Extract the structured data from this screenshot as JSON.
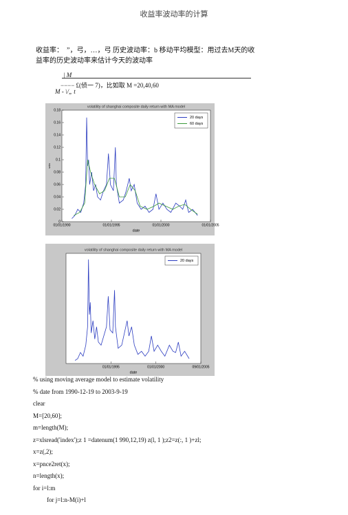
{
  "header": {
    "title": "收益率波动率的计算"
  },
  "paragraph": "收益率：　”，弓，…，弓  历史波动率：b  移动平均模型：用过去M天的收益率的历史波动率来估计今天的波动率",
  "formula": [
    "| M",
    "−−−− £(侦一 7)，比如取 M =20,40,60",
    "M - \\/„ t"
  ],
  "chart_data": [
    {
      "type": "line",
      "title": "volatility of shanghai composite daily return with MA model",
      "xlabel": "date",
      "ylabel": "vola",
      "legend": "upper right",
      "xlim": [
        1990,
        2005
      ],
      "xticks": [
        {
          "value": 1990,
          "label": "01/01/1990"
        },
        {
          "value": 1995,
          "label": "01/01/1995"
        },
        {
          "value": 2000,
          "label": "01/01/2000"
        },
        {
          "value": 2005,
          "label": "01/01/2005"
        }
      ],
      "ylim": [
        0,
        0.18
      ],
      "yticks": [
        0,
        0.02,
        0.04,
        0.06,
        0.08,
        0.1,
        0.12,
        0.14,
        0.16,
        0.18
      ],
      "series": [
        {
          "name": "20 days",
          "color": "#2b3cc0",
          "x": [
            1991.0,
            1991.3,
            1991.6,
            1991.9,
            1992.2,
            1992.4,
            1992.5,
            1992.6,
            1992.7,
            1992.8,
            1993.0,
            1993.2,
            1993.4,
            1993.6,
            1993.9,
            1994.2,
            1994.5,
            1994.7,
            1994.9,
            1995.2,
            1995.4,
            1995.5,
            1995.8,
            1996.2,
            1996.5,
            1996.8,
            1997.0,
            1997.3,
            1997.6,
            1998.0,
            1998.4,
            1998.8,
            1999.2,
            1999.5,
            1999.8,
            2000.2,
            2000.6,
            2001.0,
            2001.5,
            2001.9,
            2002.2,
            2002.5,
            2002.8,
            2003.2,
            2003.7
          ],
          "values": [
            0.005,
            0.01,
            0.02,
            0.015,
            0.03,
            0.06,
            0.168,
            0.09,
            0.1,
            0.06,
            0.08,
            0.05,
            0.06,
            0.04,
            0.035,
            0.05,
            0.06,
            0.11,
            0.06,
            0.05,
            0.12,
            0.06,
            0.03,
            0.035,
            0.05,
            0.07,
            0.05,
            0.06,
            0.03,
            0.02,
            0.025,
            0.015,
            0.02,
            0.045,
            0.02,
            0.03,
            0.02,
            0.015,
            0.03,
            0.025,
            0.02,
            0.035,
            0.015,
            0.02,
            0.01
          ]
        },
        {
          "name": "60 days",
          "color": "#3a9a3a",
          "x": [
            1991.2,
            1991.8,
            1992.3,
            1992.6,
            1992.9,
            1993.3,
            1993.8,
            1994.3,
            1994.8,
            1995.3,
            1995.8,
            1996.4,
            1996.9,
            1997.4,
            1997.9,
            1998.6,
            1999.3,
            1999.8,
            2000.5,
            2001.2,
            2001.8,
            2002.4,
            2003.0,
            2003.7
          ],
          "values": [
            0.01,
            0.015,
            0.03,
            0.1,
            0.08,
            0.06,
            0.045,
            0.05,
            0.07,
            0.07,
            0.04,
            0.04,
            0.06,
            0.05,
            0.025,
            0.02,
            0.025,
            0.03,
            0.025,
            0.02,
            0.025,
            0.028,
            0.02,
            0.012
          ]
        }
      ]
    },
    {
      "type": "line",
      "title": "volatility of shanghai composite daily return with MA model",
      "xlabel": "date",
      "legend": "upper right",
      "xlim": [
        1990,
        2005
      ],
      "xticks": [
        {
          "value": 1995,
          "label": "01/01/1995"
        },
        {
          "value": 2000,
          "label": "01/01/2000"
        },
        {
          "value": 2005,
          "label": "09/01/2005"
        }
      ],
      "ylim": [
        0,
        0.18
      ],
      "series": [
        {
          "name": "20 days",
          "color": "#2b3cc0",
          "x": [
            1991.0,
            1991.3,
            1991.6,
            1991.9,
            1992.2,
            1992.4,
            1992.5,
            1992.6,
            1992.7,
            1992.8,
            1993.0,
            1993.2,
            1993.4,
            1993.6,
            1993.9,
            1994.2,
            1994.5,
            1994.7,
            1994.9,
            1995.2,
            1995.4,
            1995.5,
            1995.8,
            1996.2,
            1996.5,
            1996.8,
            1997.0,
            1997.3,
            1997.6,
            1998.0,
            1998.4,
            1998.8,
            1999.2,
            1999.5,
            1999.8,
            2000.2,
            2000.6,
            2001.0,
            2001.5,
            2001.9,
            2002.2,
            2002.5,
            2002.8,
            2003.2,
            2003.7
          ],
          "values": [
            0.005,
            0.008,
            0.018,
            0.012,
            0.03,
            0.06,
            0.17,
            0.08,
            0.1,
            0.05,
            0.07,
            0.04,
            0.06,
            0.035,
            0.03,
            0.045,
            0.06,
            0.11,
            0.055,
            0.05,
            0.12,
            0.06,
            0.025,
            0.03,
            0.05,
            0.07,
            0.045,
            0.06,
            0.03,
            0.015,
            0.02,
            0.012,
            0.02,
            0.045,
            0.02,
            0.03,
            0.02,
            0.012,
            0.03,
            0.02,
            0.018,
            0.035,
            0.012,
            0.02,
            0.008
          ]
        }
      ]
    }
  ],
  "code": [
    "% using moving average model to estimate volatility",
    "% date from 1990-12-19 to 2003-9-19",
    "clear",
    "M=[20,60];",
    "m=length(M);",
    "z=xlsread('index');z 1 =datenum(1 990,12,19) z(l, 1 );z2=z(:, 1 )+zl;",
    "x=z(,2);",
    "x=pnce2ret(x);",
    "n=length(x);",
    "for i=l:m",
    "for j=l:n-M(i)+l"
  ]
}
